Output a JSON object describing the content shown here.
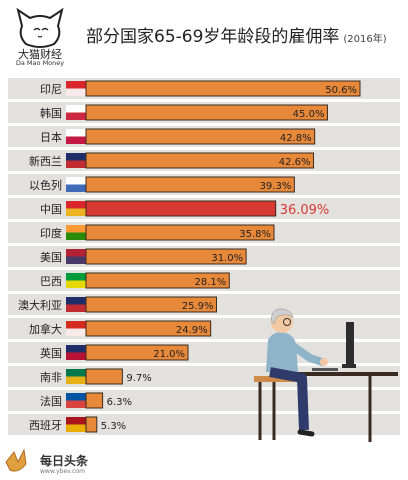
{
  "header": {
    "logo_cn": "大猫财经",
    "logo_en": "Da Mao Money",
    "title": "部分国家65-69岁年龄段的雇佣率",
    "title_year": "(2016年)"
  },
  "footer": {
    "brand": "每日头条",
    "url": "www.ybev.com"
  },
  "colors": {
    "bar_default": "#e8893a",
    "bar_china": "#d83a33",
    "row_band": "#e3e1de",
    "bar_border": "#3a2a20"
  },
  "chart_data": {
    "type": "bar",
    "orientation": "horizontal",
    "title": "部分国家65-69岁年龄段的雇佣率",
    "subtitle": "(2016年)",
    "categories": [
      "印尼",
      "韩国",
      "日本",
      "新西兰",
      "以色列",
      "中国",
      "印度",
      "美国",
      "巴西",
      "澳大利亚",
      "加拿大",
      "英国",
      "南非",
      "法国",
      "西班牙"
    ],
    "values": [
      50.6,
      45.0,
      42.8,
      42.6,
      39.3,
      36.09,
      35.8,
      31.0,
      28.1,
      25.9,
      24.9,
      21.0,
      9.7,
      6.3,
      5.3
    ],
    "value_labels": [
      "50.6%",
      "45.0%",
      "42.8%",
      "42.6%",
      "39.3%",
      "36.09%",
      "35.8%",
      "31.0%",
      "28.1%",
      "25.9%",
      "24.9%",
      "21.0%",
      "9.7%",
      "6.3%",
      "5.3%"
    ],
    "highlight": "中国",
    "xlim": [
      0,
      50.6
    ]
  }
}
